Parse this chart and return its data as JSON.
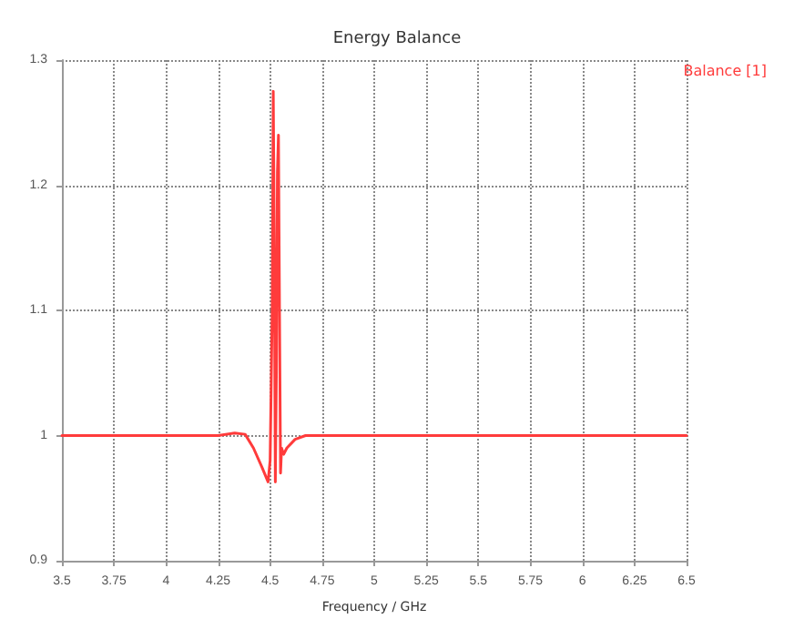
{
  "chart_data": {
    "type": "line",
    "title": "Energy Balance",
    "xlabel": "Frequency / GHz",
    "xlim": [
      3.5,
      6.5
    ],
    "xticks": [
      3.5,
      3.75,
      4,
      4.25,
      4.5,
      4.75,
      5,
      5.25,
      5.5,
      5.75,
      6,
      6.25,
      6.5
    ],
    "ylim": [
      0.9,
      1.3
    ],
    "yticks": [
      0.9,
      1,
      1.1,
      1.2,
      1.3
    ],
    "grid": true,
    "legend": "top right",
    "marker": "none",
    "line_style": "solid",
    "series": [
      {
        "name": "Balance [1]",
        "color": "#ff3b3b",
        "x": [
          3.5,
          3.75,
          4,
          4.25,
          4.33,
          4.38,
          4.42,
          4.46,
          4.49,
          4.5,
          4.51,
          4.515,
          4.52,
          4.525,
          4.53,
          4.535,
          4.54,
          4.545,
          4.55,
          4.555,
          4.565,
          4.58,
          4.62,
          4.67,
          4.75,
          5,
          5.25,
          5.5,
          5.75,
          6,
          6.25,
          6.5
        ],
        "values": [
          1,
          1,
          1,
          1,
          1.002,
          1.001,
          0.99,
          0.975,
          0.963,
          0.98,
          1.1,
          1.275,
          1.15,
          0.963,
          1.05,
          1.21,
          1.24,
          1.1,
          0.97,
          0.99,
          0.985,
          0.99,
          0.997,
          1,
          1,
          1,
          1,
          1,
          1,
          1,
          1,
          1
        ]
      }
    ]
  }
}
